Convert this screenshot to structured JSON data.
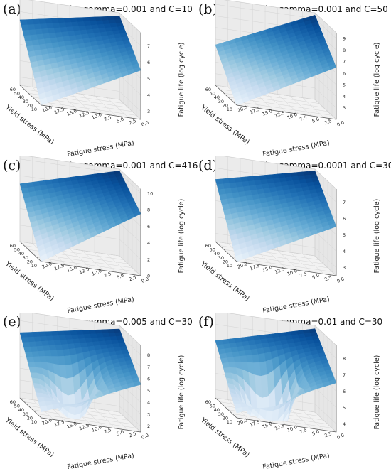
{
  "chart_data": [
    {
      "letter": "(a)",
      "type": "surface3d",
      "title": "SVR with the gamma=0.001 and C=10",
      "xlabel": "Fatigue stress (MPa)",
      "ylabel": "Yield stress (MPa)",
      "zlabel": "Fatigue life (log cycle)",
      "x_ticks": [
        "20.0",
        "17.5",
        "15.0",
        "12.5",
        "10.0",
        "7.5",
        "5.0",
        "2.5",
        "0.0"
      ],
      "y_ticks": [
        "60",
        "50",
        "40",
        "30",
        "20",
        "10"
      ],
      "z_ticks": [
        "3",
        "4",
        "5",
        "6",
        "7"
      ],
      "zlim": [
        2.5,
        7.8
      ],
      "corners": {
        "x20_y10": 2.5,
        "x0_y10": 5.5,
        "x20_y60": 6.5,
        "x0_y60": 7.6
      },
      "bump": 0.0,
      "colormap": "Blues"
    },
    {
      "letter": "(b)",
      "type": "surface3d",
      "title": "SVR with the gamma=0.001 and C=50",
      "xlabel": "Fatigue stress (MPa)",
      "ylabel": "Yield stress (MPa)",
      "zlabel": "Fatigue life (log cycle)",
      "x_ticks": [
        "20.0",
        "17.5",
        "15.0",
        "12.5",
        "10.0",
        "7.5",
        "5.0",
        "2.5",
        "0.0"
      ],
      "y_ticks": [
        "60",
        "50",
        "40",
        "30",
        "20",
        "10"
      ],
      "z_ticks": [
        "3",
        "4",
        "5",
        "6",
        "7",
        "8",
        "9"
      ],
      "zlim": [
        2.0,
        9.5
      ],
      "corners": {
        "x20_y10": 2.0,
        "x0_y10": 6.5,
        "x20_y60": 5.5,
        "x0_y60": 9.3
      },
      "bump": 0.0,
      "colormap": "Blues"
    },
    {
      "letter": "(c)",
      "type": "surface3d",
      "title": "SVR with the gamma=0.001 and C=416",
      "xlabel": "Fatigue stress (MPa)",
      "ylabel": "Yield stress (MPa)",
      "zlabel": "Fatigue life (log cycle)",
      "x_ticks": [
        "20.0",
        "17.5",
        "15.0",
        "12.5",
        "10.0",
        "7.5",
        "5.0",
        "2.5",
        "0.0"
      ],
      "y_ticks": [
        "60",
        "50",
        "40",
        "30",
        "20",
        "10"
      ],
      "z_ticks": [
        "0",
        "2",
        "4",
        "6",
        "8",
        "10"
      ],
      "zlim": [
        0,
        10.5
      ],
      "corners": {
        "x20_y10": 0.0,
        "x0_y10": 7.5,
        "x20_y60": 7.0,
        "x0_y60": 10.3
      },
      "bump": 0.0,
      "colormap": "Blues"
    },
    {
      "letter": "(d)",
      "type": "surface3d",
      "title": "SVR with the gamma=0.0001 and C=30",
      "xlabel": "Fatigue stress (MPa)",
      "ylabel": "Yield stress (MPa)",
      "zlabel": "Fatigue life (log cycle)",
      "x_ticks": [
        "20.0",
        "17.5",
        "15.0",
        "12.5",
        "10.0",
        "7.5",
        "5.0",
        "2.5",
        "0.0"
      ],
      "y_ticks": [
        "60",
        "50",
        "40",
        "30",
        "20",
        "10"
      ],
      "z_ticks": [
        "3",
        "4",
        "5",
        "6",
        "7"
      ],
      "zlim": [
        2.5,
        7.8
      ],
      "corners": {
        "x20_y10": 2.5,
        "x0_y10": 5.5,
        "x20_y60": 6.3,
        "x0_y60": 7.7
      },
      "bump": 0.0,
      "colormap": "Blues"
    },
    {
      "letter": "(e)",
      "type": "surface3d",
      "title": "SVR with the gamma=0.005 and C=30",
      "xlabel": "Fatigue stress (MPa)",
      "ylabel": "Yield stress (MPa)",
      "zlabel": "Fatigue life (log cycle)",
      "x_ticks": [
        "20.0",
        "17.5",
        "15.0",
        "12.5",
        "10.0",
        "7.5",
        "5.0",
        "2.5",
        "0.0"
      ],
      "y_ticks": [
        "60",
        "50",
        "40",
        "30",
        "20",
        "10"
      ],
      "z_ticks": [
        "2",
        "3",
        "4",
        "5",
        "6",
        "7",
        "8"
      ],
      "zlim": [
        1.5,
        8.8
      ],
      "corners": {
        "x20_y10": 2.0,
        "x0_y10": 5.5,
        "x20_y60": 7.0,
        "x0_y60": 8.5
      },
      "bump": -0.6,
      "colormap": "Blues"
    },
    {
      "letter": "(f)",
      "type": "surface3d",
      "title": "SVR with the gamma=0.01 and C=30",
      "xlabel": "Fatigue stress (MPa)",
      "ylabel": "Yield stress (MPa)",
      "zlabel": "Fatigue life (log cycle)",
      "x_ticks": [
        "20.0",
        "17.5",
        "15.0",
        "12.5",
        "10.0",
        "7.5",
        "5.0",
        "2.5",
        "0.0"
      ],
      "y_ticks": [
        "60",
        "50",
        "40",
        "30",
        "20",
        "10"
      ],
      "z_ticks": [
        "4",
        "5",
        "6",
        "7",
        "8"
      ],
      "zlim": [
        3.5,
        8.8
      ],
      "corners": {
        "x20_y10": 3.8,
        "x0_y10": 6.5,
        "x20_y60": 7.0,
        "x0_y60": 8.6
      },
      "bump": -1.2,
      "colormap": "Blues"
    }
  ]
}
